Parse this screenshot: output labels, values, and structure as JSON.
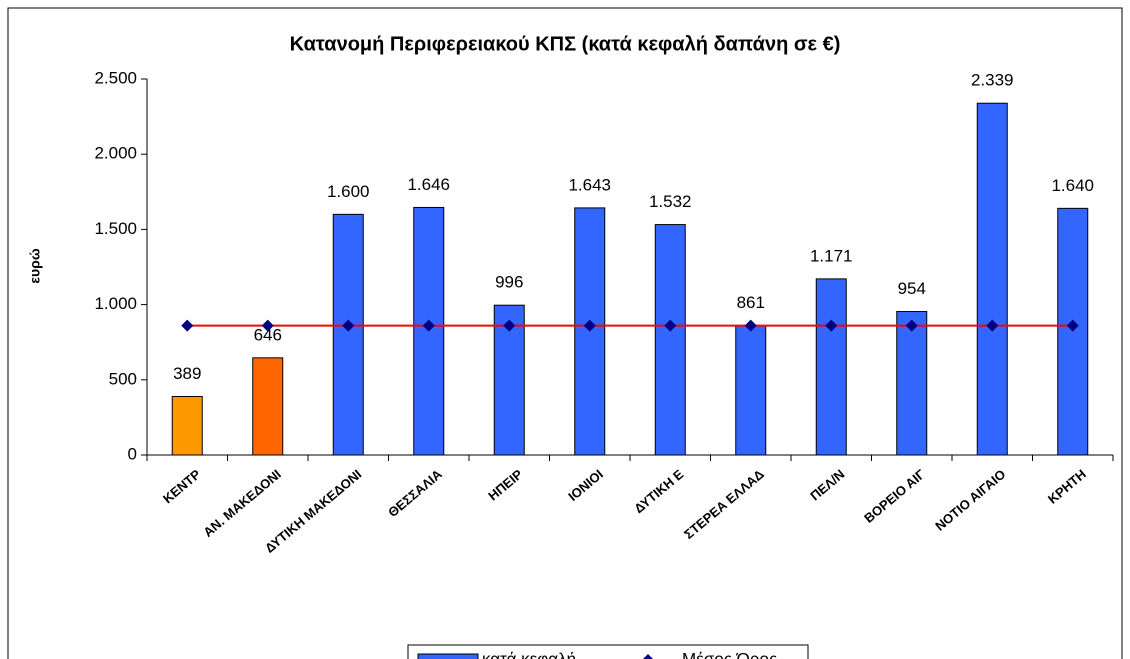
{
  "chart_data": {
    "type": "bar",
    "title": "Κατανομή Περιφερειακού ΚΠΣ  (κατά κεφαλή δαπάνη σε €)",
    "ylabel": "ευρώ",
    "categories": [
      "ΚΕΝΤΡ",
      "ΑΝ. ΜΑΚΕΔΟΝΙ",
      "ΔΥΤΙΚΗ ΜΑΚΕΔΟΝΙ",
      "ΘΕΣΣΑΛΙΑ",
      "ΗΠΕΙΡ",
      "ΙΟΝΙΟΙ",
      "ΔΥΤΙΚΗ Ε",
      "ΣΤΕΡΕΑ ΕΛΛΑΔ",
      "ΠΕΛ/Ν",
      "ΒΟΡΕΙΟ ΑΙΓ",
      "ΝΟΤΙΟ ΑΙΓΑΙΟ",
      "ΚΡΗΤΗ"
    ],
    "series": [
      {
        "name": "κατά κεφαλή",
        "color": "#3366ff",
        "point_colors": [
          "#ff9900",
          "#ff6600",
          "#3366ff",
          "#3366ff",
          "#3366ff",
          "#3366ff",
          "#3366ff",
          "#3366ff",
          "#3366ff",
          "#3366ff",
          "#3366ff",
          "#3366ff"
        ],
        "values": [
          389,
          646,
          1600,
          1646,
          996,
          1643,
          1532,
          861,
          1171,
          954,
          2339,
          1640
        ],
        "value_labels": [
          "389",
          "646",
          "1.600",
          "1.646",
          "996",
          "1.643",
          "1.532",
          "861",
          "1.171",
          "954",
          "2.339",
          "1.640"
        ]
      },
      {
        "name": "Μέσος Όρος",
        "type": "line",
        "color": "#ff0000",
        "marker_color": "#000080",
        "values": [
          860,
          860,
          860,
          860,
          860,
          860,
          860,
          860,
          860,
          860,
          860,
          860
        ]
      }
    ],
    "ylim": [
      0,
      2500
    ],
    "yticks": [
      0,
      500,
      {
        "value": 1000,
        "label": "1.000"
      },
      {
        "value": 1500,
        "label": "1.500"
      },
      {
        "value": 2000,
        "label": "2.000"
      },
      {
        "value": 2500,
        "label": "2.500"
      }
    ],
    "legend": "bottom"
  }
}
